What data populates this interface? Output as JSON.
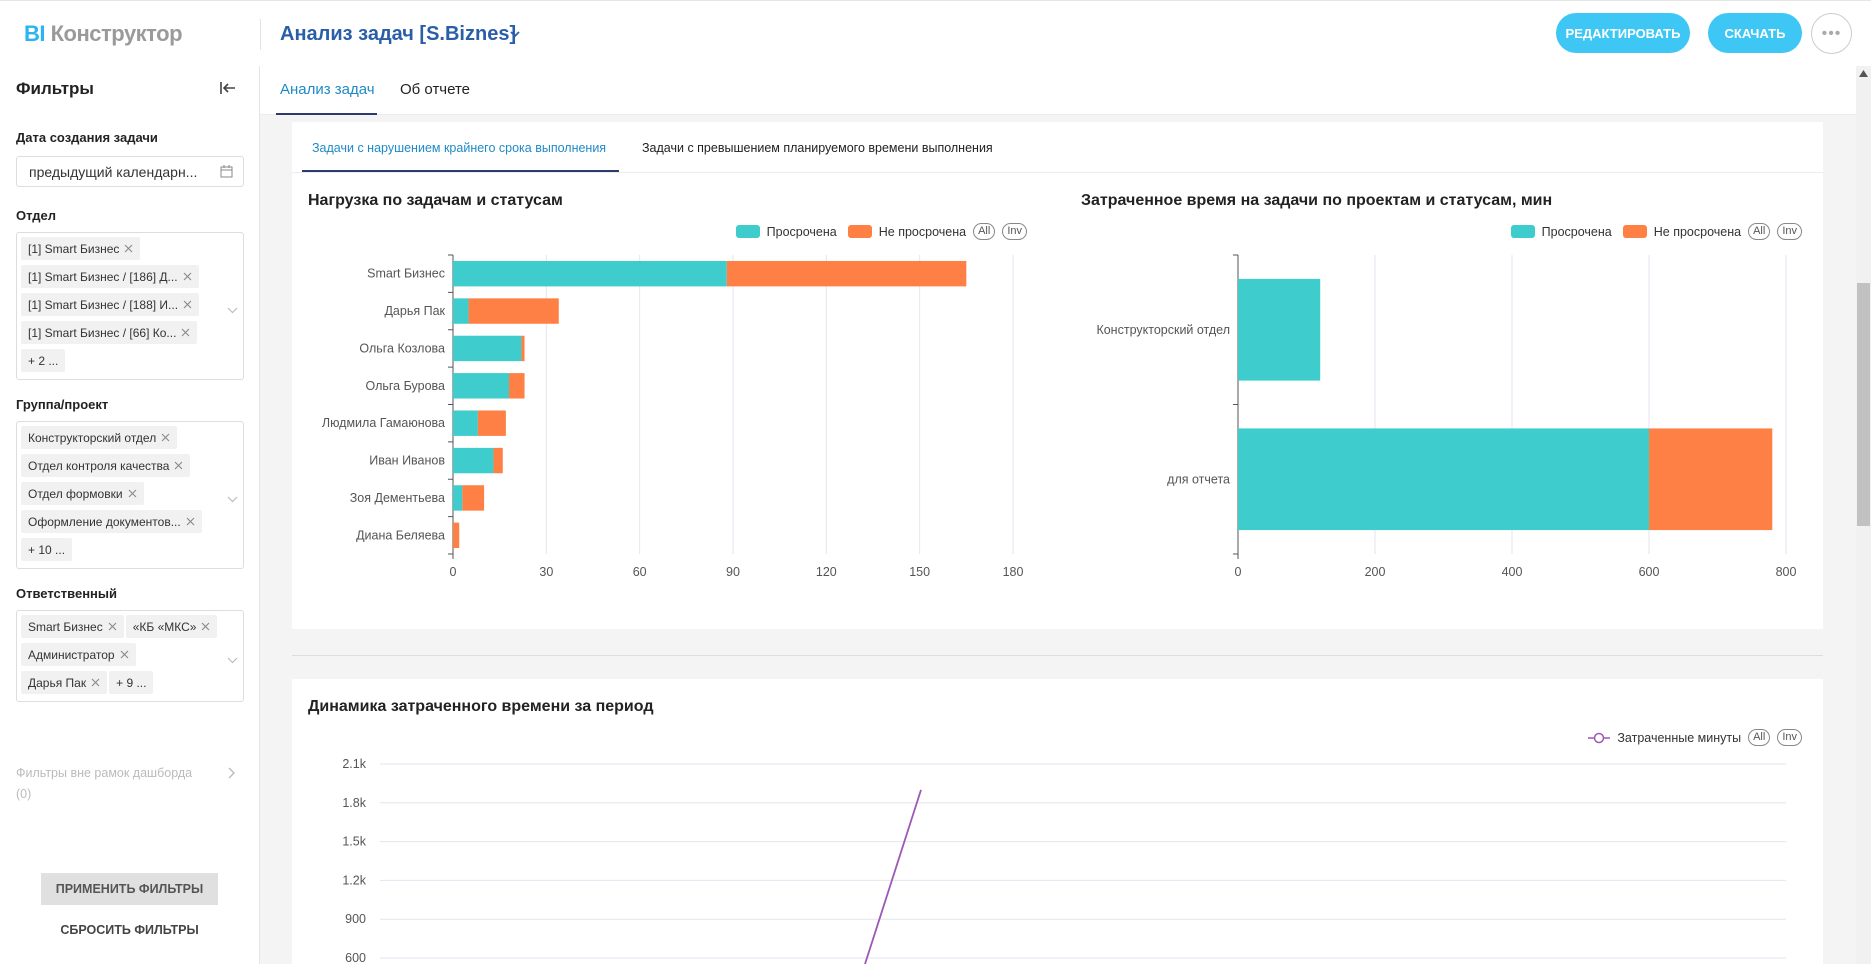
{
  "header": {
    "logo_bi": "BI",
    "logo_rest": "Конструктор",
    "title": "Анализ задач [S.Biznes]",
    "edit_label": "РЕДАКТИРОВАТЬ",
    "download_label": "СКАЧАТЬ",
    "more": "•••"
  },
  "sidebar": {
    "title": "Фильтры",
    "date_label": "Дата создания задачи",
    "date_value": "предыдущий календарн...",
    "dept_label": "Отдел",
    "dept_tags": [
      "[1] Smart Бизнес",
      "[1] Smart Бизнес / [186] Д...",
      "[1] Smart Бизнес / [188] И...",
      "[1] Smart Бизнес / [66] Ко..."
    ],
    "dept_more": "+ 2 ...",
    "group_label": "Группа/проект",
    "group_tags": [
      "Конструкторский отдел",
      "Отдел контроля качества",
      "Отдел формовки",
      "Оформление документов..."
    ],
    "group_more": "+ 10 ...",
    "resp_label": "Ответственный",
    "resp_tags": [
      "Smart Бизнес",
      "«КБ «МКС»",
      "Администратор",
      "Дарья Пак"
    ],
    "resp_more": "+ 9 ...",
    "outside_label": "Фильтры вне рамок дашборда",
    "outside_count": "(0)",
    "apply_label": "ПРИМЕНИТЬ ФИЛЬТРЫ",
    "reset_label": "СБРОСИТЬ ФИЛЬТРЫ"
  },
  "main": {
    "tabs": [
      "Анализ задач",
      "Об отчете"
    ],
    "inner_tabs": [
      "Задачи с нарушением крайнего срока выполнения",
      "Задачи с превышением планируемого времени выполнения"
    ],
    "legend_all": "All",
    "legend_inv": "Inv"
  },
  "colors": {
    "overdue": "#3ecccc",
    "not_overdue": "#ff8045",
    "line": "#9b59b6",
    "accent": "#3ec7f5"
  },
  "chart_data": [
    {
      "type": "bar",
      "orientation": "horizontal",
      "stacked": true,
      "title": "Нагрузка по задачам и статусам",
      "categories": [
        "Smart Бизнес",
        "Дарья Пак",
        "Ольга Козлова",
        "Ольга Бурова",
        "Людмила Гамаюнова",
        "Иван Иванов",
        "Зоя Дементьева",
        "Диана Беляева"
      ],
      "series": [
        {
          "name": "Просрочена",
          "values": [
            88,
            5,
            22,
            18,
            8,
            13,
            3,
            0
          ]
        },
        {
          "name": "Не просрочена",
          "values": [
            77,
            29,
            1,
            5,
            9,
            3,
            7,
            2
          ]
        }
      ],
      "xlim": [
        0,
        180
      ],
      "xticks": [
        "0",
        "30",
        "60",
        "90",
        "120",
        "150",
        "180"
      ],
      "legend": "top-right"
    },
    {
      "type": "bar",
      "orientation": "horizontal",
      "stacked": true,
      "title": "Затраченное время на задачи по проектам и статусам, мин",
      "categories": [
        "Конструкторский отдел",
        "для отчета"
      ],
      "series": [
        {
          "name": "Просрочена",
          "values": [
            120,
            600
          ]
        },
        {
          "name": "Не просрочена",
          "values": [
            0,
            180
          ]
        }
      ],
      "xlim": [
        0,
        800
      ],
      "xticks": [
        "0",
        "200",
        "400",
        "600",
        "800"
      ],
      "legend": "top-right"
    },
    {
      "type": "line",
      "title": "Динамика затраченного времени за период",
      "series": [
        {
          "name": "Затраченные минуты",
          "points": [
            {
              "x": 0,
              "y": 0
            },
            {
              "x": 1,
              "y": 1900
            }
          ]
        }
      ],
      "yticks": [
        "2.1k",
        "1.8k",
        "1.5k",
        "1.2k",
        "900",
        "600"
      ],
      "ytick_values": [
        2100,
        1800,
        1500,
        1200,
        900,
        600
      ],
      "legend": "top-right"
    }
  ]
}
